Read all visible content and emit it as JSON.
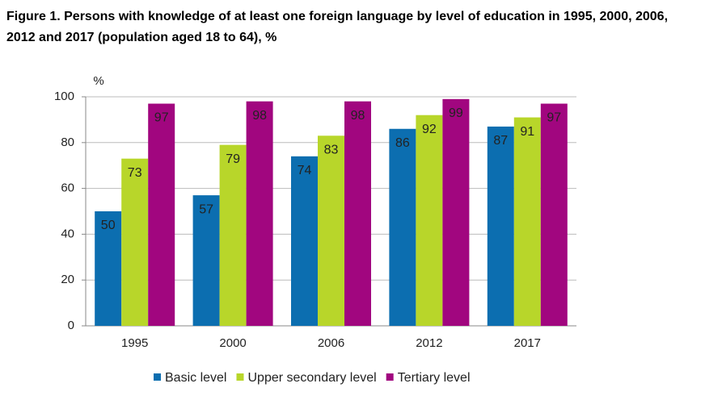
{
  "chart_data": {
    "type": "bar",
    "title": "Figure 1. Persons with knowledge of at least one foreign language by level of education in 1995, 2000, 2006, 2012 and 2017 (population aged 18 to 64), %",
    "y_unit": "%",
    "categories": [
      "1995",
      "2000",
      "2006",
      "2012",
      "2017"
    ],
    "series": [
      {
        "name": "Basic level",
        "color": "#0c6eb0",
        "values": [
          50,
          57,
          74,
          86,
          87
        ]
      },
      {
        "name": "Upper secondary level",
        "color": "#b8d62a",
        "values": [
          73,
          79,
          83,
          92,
          91
        ]
      },
      {
        "name": "Tertiary level",
        "color": "#a1067f",
        "values": [
          97,
          98,
          98,
          99,
          97
        ]
      }
    ],
    "ylim": [
      0,
      100
    ],
    "yticks": [
      0,
      20,
      40,
      60,
      80,
      100
    ],
    "grid": true,
    "legend": "bottom"
  }
}
